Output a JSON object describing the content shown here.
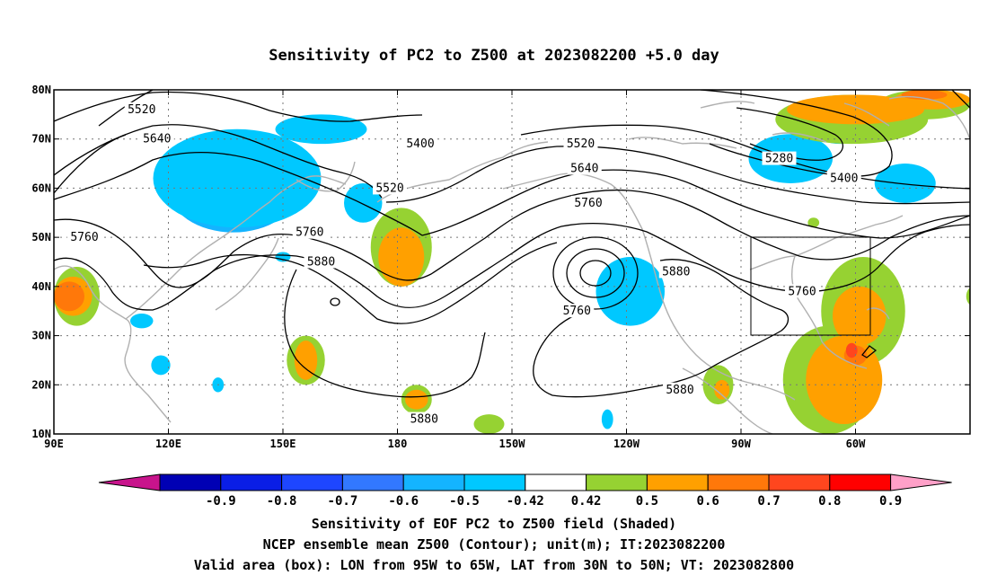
{
  "title": "Sensitivity of PC2 to Z500 at 2023082200 +5.0 day",
  "map": {
    "lon_range": [
      90,
      330
    ],
    "lat_range": [
      10,
      80
    ],
    "x_ticks": [
      {
        "lon": 90,
        "label": "90E"
      },
      {
        "lon": 120,
        "label": "120E"
      },
      {
        "lon": 150,
        "label": "150E"
      },
      {
        "lon": 180,
        "label": "180"
      },
      {
        "lon": 210,
        "label": "150W"
      },
      {
        "lon": 240,
        "label": "120W"
      },
      {
        "lon": 270,
        "label": "90W"
      },
      {
        "lon": 300,
        "label": "60W"
      }
    ],
    "y_ticks": [
      {
        "lat": 80,
        "label": "80N"
      },
      {
        "lat": 70,
        "label": "70N"
      },
      {
        "lat": 60,
        "label": "60N"
      },
      {
        "lat": 50,
        "label": "50N"
      },
      {
        "lat": 40,
        "label": "40N"
      },
      {
        "lat": 30,
        "label": "30N"
      },
      {
        "lat": 20,
        "label": "20N"
      },
      {
        "lat": 10,
        "label": "10N"
      }
    ],
    "grid": "dotted",
    "valid_box": {
      "lon_min": 265,
      "lon_max": 295,
      "lat_min": 30,
      "lat_max": 50
    },
    "contour_labels": [
      {
        "text": "5520",
        "lon": 113,
        "lat": 76
      },
      {
        "text": "5640",
        "lon": 117,
        "lat": 70
      },
      {
        "text": "5400",
        "lon": 186,
        "lat": 69
      },
      {
        "text": "5520",
        "lon": 178,
        "lat": 60
      },
      {
        "text": "5760",
        "lon": 98,
        "lat": 50
      },
      {
        "text": "5760",
        "lon": 157,
        "lat": 51
      },
      {
        "text": "5880",
        "lon": 160,
        "lat": 45
      },
      {
        "text": "5520",
        "lon": 228,
        "lat": 69
      },
      {
        "text": "5640",
        "lon": 229,
        "lat": 64
      },
      {
        "text": "5760",
        "lon": 230,
        "lat": 57
      },
      {
        "text": "5760",
        "lon": 227,
        "lat": 35
      },
      {
        "text": "5880",
        "lon": 253,
        "lat": 43
      },
      {
        "text": "5880",
        "lon": 254,
        "lat": 19
      },
      {
        "text": "5880",
        "lon": 187,
        "lat": 13
      },
      {
        "text": "5280",
        "lon": 280,
        "lat": 66
      },
      {
        "text": "5400",
        "lon": 297,
        "lat": 62
      },
      {
        "text": "5760",
        "lon": 286,
        "lat": 39
      }
    ],
    "shading": [
      {
        "level": "neg_07",
        "ellipses": [
          [
            130,
            64,
            7,
            3
          ]
        ]
      },
      {
        "level": "neg_06",
        "ellipses": [
          [
            128,
            62,
            11,
            5
          ],
          [
            170,
            56,
            3,
            2
          ],
          [
            241,
            39,
            3,
            3
          ]
        ]
      },
      {
        "level": "neg_05",
        "ellipses": [
          [
            137,
            60,
            17,
            9
          ],
          [
            171,
            57,
            4,
            3
          ],
          [
            242,
            39,
            6,
            5
          ],
          [
            281,
            67,
            6,
            2
          ],
          [
            313,
            62,
            6,
            3
          ]
        ]
      },
      {
        "level": "neg_042",
        "ellipses": [
          [
            138,
            62,
            22,
            10
          ],
          [
            160,
            72,
            12,
            3
          ],
          [
            171,
            57,
            5,
            4
          ],
          [
            241,
            39,
            9,
            7
          ],
          [
            283,
            66,
            11,
            5
          ],
          [
            296,
            71,
            6,
            2
          ],
          [
            313,
            61,
            8,
            4
          ],
          [
            113,
            33,
            3,
            1.5
          ],
          [
            118,
            24,
            2.5,
            2
          ],
          [
            133,
            20,
            1.5,
            1.5
          ],
          [
            150,
            46,
            2,
            1
          ],
          [
            235,
            13,
            1.5,
            2
          ]
        ]
      },
      {
        "level": "pos_042",
        "ellipses": [
          [
            181,
            48,
            8,
            8
          ],
          [
            96,
            38,
            6,
            6
          ],
          [
            156,
            25,
            5,
            5
          ],
          [
            185,
            17,
            4,
            3
          ],
          [
            204,
            12,
            4,
            2
          ],
          [
            293,
            21,
            12,
            11
          ],
          [
            302,
            35,
            11,
            11
          ],
          [
            299,
            74,
            20,
            5
          ],
          [
            318,
            77,
            12,
            3
          ],
          [
            264,
            20,
            4,
            4
          ],
          [
            331,
            38,
            2,
            2
          ],
          [
            289,
            53,
            1.5,
            1
          ]
        ]
      },
      {
        "level": "pos_05",
        "ellipses": [
          [
            181,
            46,
            6,
            6
          ],
          [
            95,
            38,
            5,
            4
          ],
          [
            156,
            25,
            3,
            4
          ],
          [
            185,
            17,
            3,
            2
          ],
          [
            297,
            21,
            10,
            9
          ],
          [
            301,
            34,
            7,
            6
          ],
          [
            300,
            76,
            18,
            3
          ],
          [
            320,
            78,
            10,
            2
          ],
          [
            265,
            19,
            2,
            2
          ]
        ]
      },
      {
        "level": "pos_06",
        "ellipses": [
          [
            94,
            38,
            4,
            3
          ],
          [
            300,
            26,
            3,
            2
          ],
          [
            318,
            79,
            6,
            1
          ]
        ]
      },
      {
        "level": "pos_07",
        "ellipses": [
          [
            299,
            27,
            1.5,
            1.5
          ]
        ]
      }
    ]
  },
  "colorbar": {
    "labels": [
      "-0.9",
      "-0.8",
      "-0.7",
      "-0.6",
      "-0.5",
      "-0.42",
      "0.42",
      "0.5",
      "0.6",
      "0.7",
      "0.8",
      "0.9"
    ],
    "colors": {
      "neg_below_09": "#c8148c",
      "neg_09": "#0000b4",
      "neg_08": "#0a1ee6",
      "neg_07": "#1e46ff",
      "neg_06": "#3278ff",
      "neg_05": "#14b4ff",
      "neg_042": "#00c8ff",
      "neutral": "#ffffff",
      "pos_042": "#96d232",
      "pos_05": "#ffa000",
      "pos_06": "#ff780a",
      "pos_07": "#ff461e",
      "pos_08": "#ff0000",
      "pos_above_09": "#ffa0c8"
    }
  },
  "footer": {
    "line1": "Sensitivity of EOF PC2 to Z500 field (Shaded)",
    "line2": "NCEP ensemble mean Z500 (Contour); unit(m); IT:2023082200",
    "line3": "Valid area (box): LON from 95W to 65W, LAT from 30N to 50N; VT: 2023082800"
  }
}
